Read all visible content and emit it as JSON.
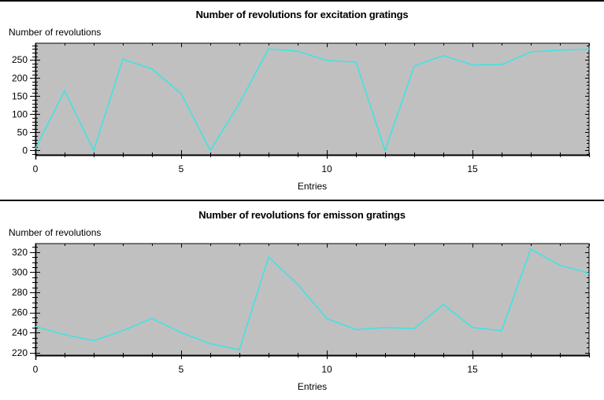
{
  "colors": {
    "plot_background": "#c0c0c0",
    "line": "#33e6e6",
    "axis": "#000000",
    "page_background": "#ffffff"
  },
  "chart_data": [
    {
      "type": "line",
      "title": "Number of revolutions for excitation gratings",
      "xlabel": "Entries",
      "ylabel": "Number of revolutions",
      "x": [
        0,
        1,
        2,
        3,
        4,
        5,
        6,
        7,
        8,
        9,
        10,
        11,
        12,
        13,
        14,
        15,
        16,
        17,
        18,
        19
      ],
      "series": [
        {
          "name": "Number of revolutions",
          "values": [
            5,
            165,
            0,
            252,
            225,
            157,
            0,
            130,
            280,
            274,
            248,
            244,
            0,
            233,
            262,
            236,
            237,
            272,
            277,
            280
          ]
        }
      ],
      "xlim": [
        0,
        19
      ],
      "ylim": [
        -12,
        296
      ],
      "x_ticks": [
        0,
        5,
        10,
        15
      ],
      "y_ticks": [
        0,
        50,
        100,
        150,
        200,
        250
      ],
      "grid": false,
      "legend": "none"
    },
    {
      "type": "line",
      "title": "Number of revolutions for emisson gratings",
      "xlabel": "Entries",
      "ylabel": "Number of revolutions",
      "x": [
        0,
        1,
        2,
        3,
        4,
        5,
        6,
        7,
        8,
        9,
        10,
        11,
        12,
        13,
        14,
        15,
        16,
        17,
        18,
        19
      ],
      "series": [
        {
          "name": "Number of revolutions",
          "values": [
            246,
            238,
            232,
            242,
            254,
            240,
            229,
            223,
            315,
            288,
            254,
            243,
            245,
            244,
            268,
            245,
            242,
            323,
            307,
            299
          ]
        }
      ],
      "xlim": [
        0,
        19
      ],
      "ylim": [
        217.5,
        328.5
      ],
      "x_ticks": [
        0,
        5,
        10,
        15
      ],
      "y_ticks": [
        220,
        240,
        260,
        280,
        300,
        320
      ],
      "grid": false,
      "legend": "none"
    }
  ]
}
